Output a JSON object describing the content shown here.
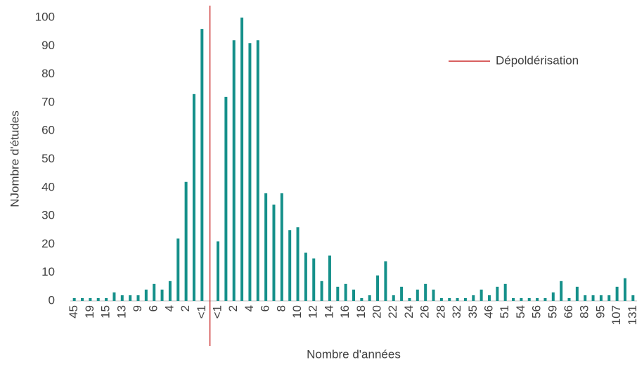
{
  "chart_data": {
    "type": "bar",
    "y_label": "NJombre d'études",
    "x_label": "Nombre d'années",
    "categories": [
      "45",
      null,
      "19",
      null,
      "15",
      null,
      "13",
      null,
      "9",
      null,
      "6",
      null,
      "4",
      null,
      "2",
      null,
      "<1",
      null,
      "<1",
      null,
      "2",
      null,
      "4",
      null,
      "6",
      null,
      "8",
      null,
      "10",
      null,
      "12",
      null,
      "14",
      null,
      "16",
      null,
      "18",
      null,
      "20",
      null,
      "22",
      null,
      "24",
      null,
      "26",
      null,
      "28",
      null,
      "32",
      null,
      "35",
      null,
      "46",
      null,
      "51",
      null,
      "54",
      null,
      "56",
      null,
      "59",
      null,
      "66",
      null,
      "83",
      null,
      "95",
      null,
      "107",
      null,
      "131"
    ],
    "values": [
      1,
      1,
      1,
      1,
      1,
      3,
      2,
      2,
      2,
      4,
      6,
      4,
      7,
      22,
      42,
      73,
      96,
      null,
      21,
      72,
      92,
      100,
      91,
      92,
      38,
      34,
      38,
      25,
      26,
      17,
      15,
      7,
      16,
      5,
      6,
      4,
      1,
      2,
      9,
      14,
      2,
      5,
      1,
      4,
      6,
      4,
      1,
      1,
      1,
      1,
      2,
      4,
      2,
      5,
      6,
      1,
      1,
      1,
      1,
      1,
      3,
      7,
      1,
      5,
      2,
      2,
      2,
      2,
      5,
      8,
      2
    ],
    "color": "#15908a",
    "ylim": [
      0,
      100
    ],
    "yticks": [
      0,
      10,
      20,
      30,
      40,
      50,
      60,
      70,
      80,
      90,
      100
    ],
    "vline": {
      "name": "Dépoldérisation",
      "color": "#c00000"
    }
  }
}
